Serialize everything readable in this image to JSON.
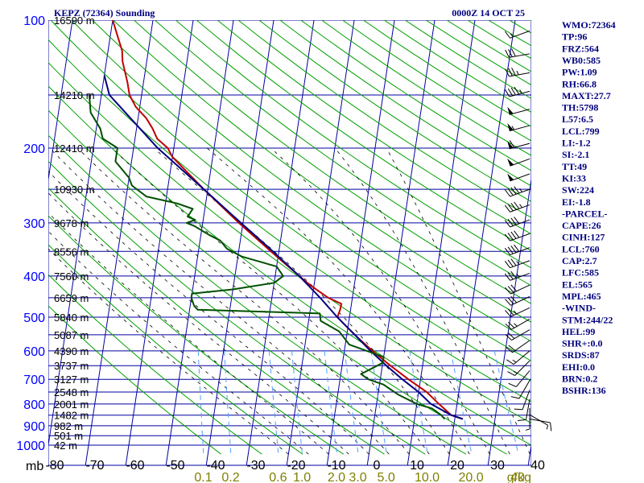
{
  "header": {
    "title": "KEPZ (72364) Sounding",
    "datetime": "0000Z 14 OCT 25"
  },
  "chart_data": {
    "type": "line",
    "title": "KEPZ (72364) Sounding",
    "subtitle": "0000Z 14 OCT 25",
    "skew_t": true,
    "pressure_axis": {
      "scale": "log",
      "ylim": [
        100,
        1000
      ],
      "ticks": [
        100,
        200,
        300,
        400,
        500,
        600,
        700,
        800,
        900,
        1000
      ],
      "label": "mb"
    },
    "temperature_axis": {
      "xlim": [
        -80,
        40
      ],
      "ticks": [
        "-80",
        "-70",
        "-60",
        "-50",
        "-40",
        "-30",
        "-20",
        "-10",
        "0",
        "10",
        "20",
        "30",
        "40"
      ]
    },
    "mixing_ratio_ticks": {
      "labels": [
        "0.1",
        "0.2",
        "0.6",
        "1.0",
        "2.0",
        "3.0",
        "5.0",
        "10.0",
        "20.0",
        "40"
      ],
      "values": [
        0.1,
        0.2,
        0.6,
        1.0,
        2.0,
        3.0,
        5.0,
        10.0,
        20.0,
        40.0
      ],
      "unit": "g/kg"
    },
    "height_labels": [
      {
        "p": 100,
        "label": "16590 m"
      },
      {
        "p": 150,
        "label": "14210 m"
      },
      {
        "p": 200,
        "label": "12410 m"
      },
      {
        "p": 250,
        "label": "10930 m"
      },
      {
        "p": 300,
        "label": "9678 m"
      },
      {
        "p": 350,
        "label": "8556 m"
      },
      {
        "p": 400,
        "label": "7560 m"
      },
      {
        "p": 450,
        "label": "6659 m"
      },
      {
        "p": 500,
        "label": "5840 m"
      },
      {
        "p": 550,
        "label": "5087 m"
      },
      {
        "p": 600,
        "label": "4390 m"
      },
      {
        "p": 650,
        "label": "3737 m"
      },
      {
        "p": 700,
        "label": "3127 m"
      },
      {
        "p": 750,
        "label": "2548 m"
      },
      {
        "p": 800,
        "label": "2001 m"
      },
      {
        "p": 850,
        "label": "1482 m"
      },
      {
        "p": 900,
        "label": "982 m"
      },
      {
        "p": 950,
        "label": "501 m"
      },
      {
        "p": 1000,
        "label": "42 m"
      }
    ],
    "series": [
      {
        "color": "#c00000",
        "points": [
          [
            868,
            22.0
          ],
          [
            850,
            19.0
          ],
          [
            800,
            15.5
          ],
          [
            750,
            12.0
          ],
          [
            700,
            7.0
          ],
          [
            650,
            2.0
          ],
          [
            600,
            -3.0
          ],
          [
            560,
            -7.0
          ],
          [
            530,
            -10.0
          ],
          [
            500,
            -13.0
          ],
          [
            480,
            -12.6
          ],
          [
            465,
            -12.5
          ],
          [
            450,
            -16.0
          ],
          [
            420,
            -21.0
          ],
          [
            400,
            -24.0
          ],
          [
            350,
            -32.0
          ],
          [
            300,
            -41.0
          ],
          [
            250,
            -51.0
          ],
          [
            210,
            -60.0
          ],
          [
            200,
            -61.5
          ],
          [
            190,
            -64.5
          ],
          [
            180,
            -66.0
          ],
          [
            170,
            -68.0
          ],
          [
            160,
            -71.0
          ],
          [
            150,
            -73.0
          ],
          [
            140,
            -74.0
          ],
          [
            125,
            -76.0
          ],
          [
            118,
            -76.5
          ],
          [
            110,
            -78.0
          ],
          [
            100,
            -80.0
          ]
        ]
      },
      {
        "color": "#00007f",
        "points": [
          [
            868,
            22.0
          ],
          [
            850,
            19.0
          ],
          [
            800,
            13.5
          ],
          [
            750,
            10.0
          ],
          [
            700,
            5.5
          ],
          [
            650,
            1.0
          ],
          [
            600,
            -3.5
          ],
          [
            550,
            -8.0
          ],
          [
            500,
            -13.0
          ],
          [
            450,
            -18.0
          ],
          [
            400,
            -24.0
          ],
          [
            350,
            -31.5
          ],
          [
            300,
            -40.5
          ],
          [
            250,
            -51.0
          ],
          [
            200,
            -64.0
          ],
          [
            150,
            -78.0
          ],
          [
            135,
            -80.0
          ]
        ]
      },
      {
        "color": "#005000",
        "points": [
          [
            868,
            17.5
          ],
          [
            850,
            16.5
          ],
          [
            820,
            14.0
          ],
          [
            800,
            10.0
          ],
          [
            760,
            5.0
          ],
          [
            740,
            3.0
          ],
          [
            720,
            1.0
          ],
          [
            700,
            -3.0
          ],
          [
            680,
            -5.0
          ],
          [
            640,
            0.0
          ],
          [
            620,
            0.0
          ],
          [
            580,
            -9.0
          ],
          [
            540,
            -12.0
          ],
          [
            510,
            -17.0
          ],
          [
            490,
            -17.5
          ],
          [
            480,
            -48.0
          ],
          [
            470,
            -49.0
          ],
          [
            450,
            -50.0
          ],
          [
            440,
            -50.0
          ],
          [
            430,
            -40.0
          ],
          [
            415,
            -30.0
          ],
          [
            400,
            -28.0
          ],
          [
            380,
            -30.0
          ],
          [
            360,
            -39.0
          ],
          [
            345,
            -43.0
          ],
          [
            330,
            -45.0
          ],
          [
            320,
            -48.0
          ],
          [
            305,
            -52.0
          ],
          [
            300,
            -54.0
          ],
          [
            295,
            -52.0
          ],
          [
            290,
            -54.0
          ],
          [
            278,
            -53.0
          ],
          [
            270,
            -57.0
          ],
          [
            260,
            -65.0
          ],
          [
            245,
            -69.0
          ],
          [
            235,
            -70.0
          ],
          [
            215,
            -74.0
          ],
          [
            200,
            -74.0
          ],
          [
            190,
            -78.0
          ],
          [
            180,
            -79.0
          ],
          [
            165,
            -82.0
          ],
          [
            150,
            -83.0
          ]
        ]
      }
    ],
    "grid": true
  },
  "winds": {
    "description": "wind barbs along right side of diagram",
    "levels": [
      {
        "p": 106,
        "dir": 250,
        "spd": 15
      },
      {
        "p": 120,
        "dir": 260,
        "spd": 30
      },
      {
        "p": 133,
        "dir": 260,
        "spd": 35
      },
      {
        "p": 147,
        "dir": 255,
        "spd": 45
      },
      {
        "p": 162,
        "dir": 255,
        "spd": 50
      },
      {
        "p": 177,
        "dir": 255,
        "spd": 55
      },
      {
        "p": 195,
        "dir": 255,
        "spd": 60
      },
      {
        "p": 212,
        "dir": 250,
        "spd": 50
      },
      {
        "p": 230,
        "dir": 250,
        "spd": 50
      },
      {
        "p": 250,
        "dir": 250,
        "spd": 45
      },
      {
        "p": 272,
        "dir": 250,
        "spd": 45
      },
      {
        "p": 295,
        "dir": 250,
        "spd": 40
      },
      {
        "p": 318,
        "dir": 250,
        "spd": 40
      },
      {
        "p": 343,
        "dir": 250,
        "spd": 40
      },
      {
        "p": 368,
        "dir": 250,
        "spd": 35
      },
      {
        "p": 394,
        "dir": 250,
        "spd": 35
      },
      {
        "p": 420,
        "dir": 245,
        "spd": 30
      },
      {
        "p": 447,
        "dir": 245,
        "spd": 30
      },
      {
        "p": 475,
        "dir": 245,
        "spd": 25
      },
      {
        "p": 505,
        "dir": 240,
        "spd": 25
      },
      {
        "p": 535,
        "dir": 240,
        "spd": 20
      },
      {
        "p": 567,
        "dir": 235,
        "spd": 20
      },
      {
        "p": 600,
        "dir": 230,
        "spd": 15
      },
      {
        "p": 633,
        "dir": 225,
        "spd": 15
      },
      {
        "p": 668,
        "dir": 220,
        "spd": 10
      },
      {
        "p": 704,
        "dir": 210,
        "spd": 10
      },
      {
        "p": 741,
        "dir": 200,
        "spd": 10
      },
      {
        "p": 779,
        "dir": 190,
        "spd": 10
      },
      {
        "p": 818,
        "dir": 180,
        "spd": 5
      },
      {
        "p": 848,
        "dir": 120,
        "spd": 5
      },
      {
        "p": 868,
        "dir": 100,
        "spd": 10
      }
    ]
  },
  "stats": [
    {
      "key": "wmo",
      "text": "WMO:72364"
    },
    {
      "key": "tp",
      "text": "TP:96"
    },
    {
      "key": "frz",
      "text": "FRZ:564"
    },
    {
      "key": "wb0",
      "text": "WB0:585"
    },
    {
      "key": "pw",
      "text": "PW:1.09"
    },
    {
      "key": "rh",
      "text": "RH:66.8"
    },
    {
      "key": "maxt",
      "text": "MAXT:27.7"
    },
    {
      "key": "th",
      "text": "TH:5798"
    },
    {
      "key": "l57",
      "text": "L57:6.5"
    },
    {
      "key": "lcl",
      "text": "LCL:799"
    },
    {
      "key": "li",
      "text": "LI:-1.2"
    },
    {
      "key": "si",
      "text": "SI:-2.1"
    },
    {
      "key": "tt",
      "text": "TT:49"
    },
    {
      "key": "ki",
      "text": "KI:33"
    },
    {
      "key": "sw",
      "text": "SW:224"
    },
    {
      "key": "ei",
      "text": "EI:-1.8"
    },
    {
      "key": "parcel-header",
      "text": "-PARCEL-"
    },
    {
      "key": "cape",
      "text": "CAPE:26"
    },
    {
      "key": "cinh",
      "text": "CINH:127"
    },
    {
      "key": "parcel-lcl",
      "text": "LCL:760"
    },
    {
      "key": "cap",
      "text": "CAP:2.7"
    },
    {
      "key": "lfc",
      "text": "LFC:585"
    },
    {
      "key": "el",
      "text": "EL:565"
    },
    {
      "key": "mpl",
      "text": "MPL:465"
    },
    {
      "key": "wind-header",
      "text": "-WIND-"
    },
    {
      "key": "stm",
      "text": "STM:244/22"
    },
    {
      "key": "hel",
      "text": "HEL:99"
    },
    {
      "key": "shr",
      "text": "SHR+:0.0"
    },
    {
      "key": "srds",
      "text": "SRDS:87"
    },
    {
      "key": "ehi",
      "text": "EHI:0.0"
    },
    {
      "key": "brn",
      "text": "BRN:0.2"
    },
    {
      "key": "bshr",
      "text": "BSHR:136"
    }
  ],
  "colors": {
    "isobar": "#0000a0",
    "isotherm": "#0000a0",
    "dry_adiabat": "#00a000",
    "moist_adiabat": "#000000",
    "mixing_ratio": "#4fa0ff",
    "temperature": "#c00000",
    "parcel": "#00007f",
    "dewpoint": "#005000",
    "axis_pressure": "#0000ff",
    "axis_mixing": "#7f7f00",
    "stats_text": "#00007f"
  }
}
